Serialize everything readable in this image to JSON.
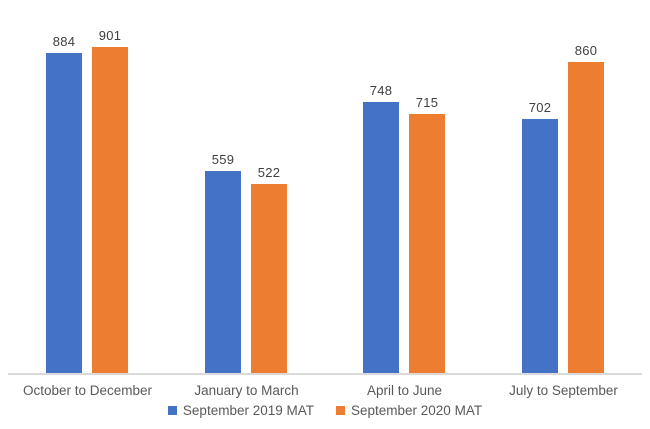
{
  "chart_data": {
    "type": "bar",
    "categories": [
      "October to December",
      "January to March",
      "April to June",
      "July to September"
    ],
    "series": [
      {
        "name": "September 2019 MAT",
        "color": "#4472C4",
        "values": [
          884,
          559,
          748,
          702
        ]
      },
      {
        "name": "September 2020 MAT",
        "color": "#ED7D31",
        "values": [
          901,
          522,
          715,
          860
        ]
      }
    ],
    "title": "",
    "xlabel": "",
    "ylabel": "",
    "ylim": [
      0,
      1030
    ],
    "grid": false,
    "data_labels": true,
    "legend_position": "bottom"
  },
  "legend": {
    "items": [
      {
        "label": "September 2019 MAT",
        "color": "#4472C4"
      },
      {
        "label": "September 2020 MAT",
        "color": "#ED7D31"
      }
    ]
  },
  "colors": {
    "series_2019": "#4472C4",
    "series_2020": "#ED7D31",
    "axis_line": "#D9D9D9",
    "value_label_text": "#404040",
    "axis_label_text": "#595959",
    "background": "#FFFFFF"
  }
}
